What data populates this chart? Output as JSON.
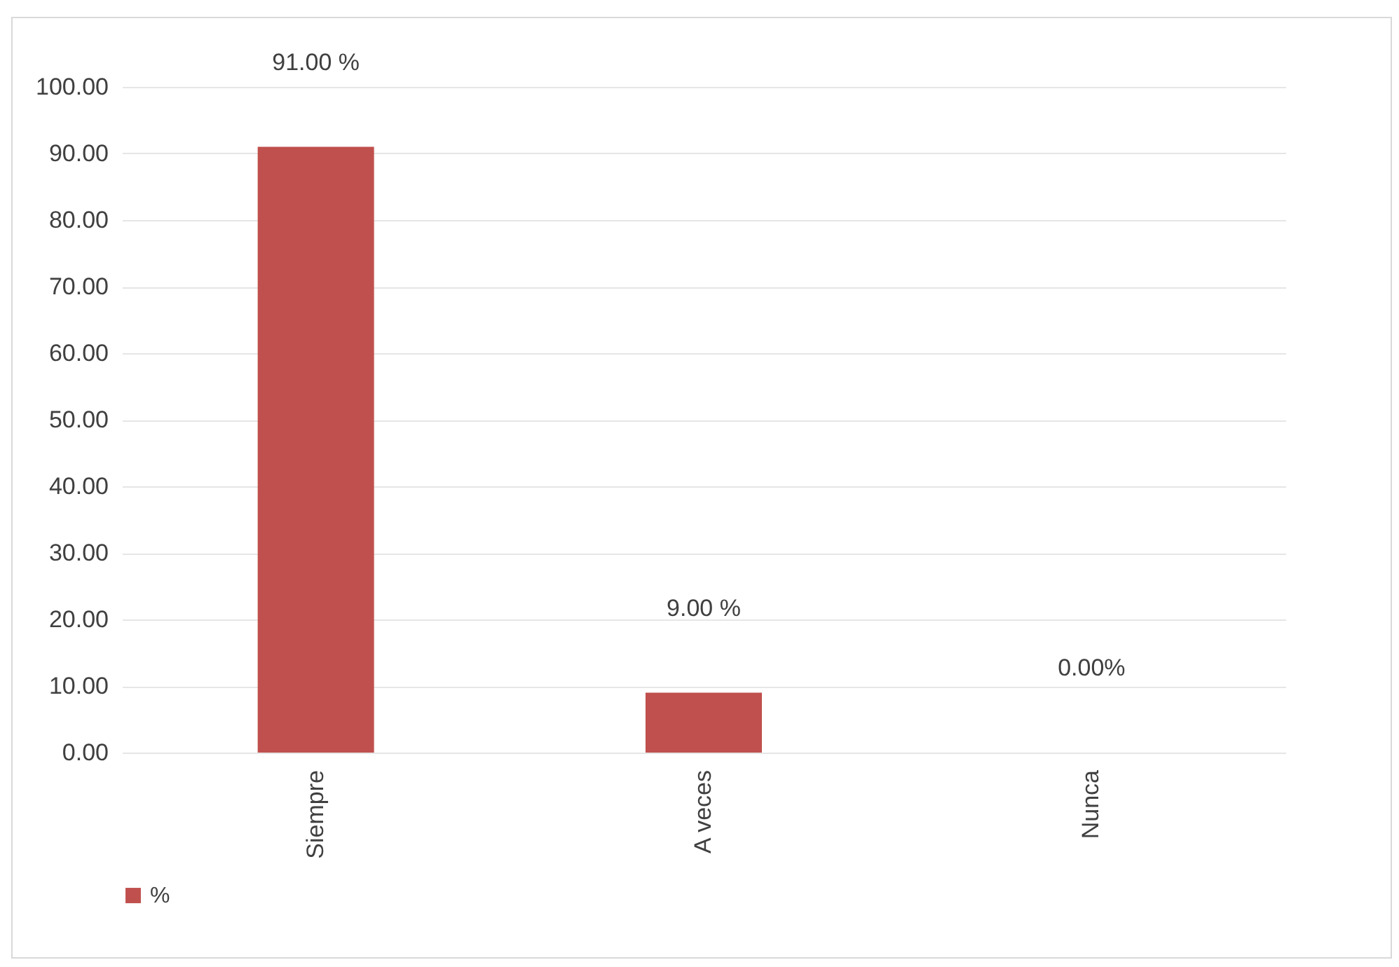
{
  "chart_data": {
    "type": "bar",
    "categories": [
      "Siempre",
      "A veces",
      "Nunca"
    ],
    "series": [
      {
        "name": "%",
        "color": "#c0504d",
        "values": [
          91,
          9,
          0
        ],
        "value_labels": [
          "91.00 %",
          "9.00  %",
          "0.00%"
        ]
      }
    ],
    "ylim": [
      0,
      100
    ],
    "yticks": [
      {
        "value": 0,
        "label": "0.00"
      },
      {
        "value": 10,
        "label": "10.00"
      },
      {
        "value": 20,
        "label": "20.00"
      },
      {
        "value": 30,
        "label": "30.00"
      },
      {
        "value": 40,
        "label": "40.00"
      },
      {
        "value": 50,
        "label": "50.00"
      },
      {
        "value": 60,
        "label": "60.00"
      },
      {
        "value": 70,
        "label": "70.00"
      },
      {
        "value": 80,
        "label": "80.00"
      },
      {
        "value": 90,
        "label": "90.00"
      },
      {
        "value": 100,
        "label": "100.00"
      }
    ],
    "grid": "y",
    "legend": "bottom"
  }
}
